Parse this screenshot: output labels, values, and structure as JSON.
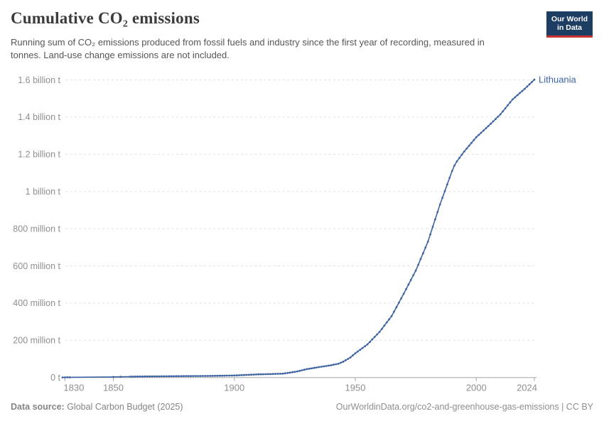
{
  "header": {
    "title": "Cumulative CO₂ emissions",
    "subtitle": "Running sum of CO₂ emissions produced from fossil fuels and industry since the first year of recording, measured in tonnes. Land-use change emissions are not included."
  },
  "logo": {
    "line1": "Our World",
    "line2": "in Data"
  },
  "chart_data": {
    "type": "line",
    "title": "Cumulative CO₂ emissions",
    "entity": "Lithuania",
    "unit": "tonnes",
    "point_values_unit": "million tonnes",
    "x_range": [
      1829,
      2024
    ],
    "y_range_million_tonnes": [
      0,
      1600
    ],
    "grid": true,
    "legend_position": "end-of-line",
    "x_ticks": [
      1830,
      1850,
      1900,
      1950,
      2000,
      2024
    ],
    "y_ticks": [
      {
        "label": "1.6 billion t",
        "value": 1600
      },
      {
        "label": "1.4 billion t",
        "value": 1400
      },
      {
        "label": "1.2 billion t",
        "value": 1200
      },
      {
        "label": "1 billion t",
        "value": 1000
      },
      {
        "label": "800 million t",
        "value": 800
      },
      {
        "label": "600 million t",
        "value": 600
      },
      {
        "label": "400 million t",
        "value": 400
      },
      {
        "label": "200 million t",
        "value": 200
      },
      {
        "label": "0 t",
        "value": 0
      }
    ],
    "series": [
      {
        "name": "Lithuania",
        "color": "#3e63a2",
        "points": [
          [
            1829,
            0.4
          ],
          [
            1830,
            0.7
          ],
          [
            1831,
            1.0
          ],
          [
            1832,
            1.3
          ],
          [
            1850,
            3.2
          ],
          [
            1853,
            4.0
          ],
          [
            1857,
            4.6
          ],
          [
            1860,
            5.2
          ],
          [
            1865,
            5.8
          ],
          [
            1870,
            6.4
          ],
          [
            1875,
            7.0
          ],
          [
            1880,
            7.6
          ],
          [
            1885,
            8.0
          ],
          [
            1890,
            8.6
          ],
          [
            1895,
            9.6
          ],
          [
            1900,
            11
          ],
          [
            1905,
            14
          ],
          [
            1910,
            17
          ],
          [
            1915,
            18.5
          ],
          [
            1920,
            20.5
          ],
          [
            1925,
            30
          ],
          [
            1930,
            45
          ],
          [
            1935,
            56
          ],
          [
            1940,
            66
          ],
          [
            1943,
            74
          ],
          [
            1945,
            85
          ],
          [
            1948,
            108
          ],
          [
            1950,
            130
          ],
          [
            1955,
            178
          ],
          [
            1960,
            245
          ],
          [
            1965,
            330
          ],
          [
            1970,
            450
          ],
          [
            1975,
            575
          ],
          [
            1980,
            730
          ],
          [
            1985,
            930
          ],
          [
            1990,
            1110
          ],
          [
            1991,
            1140
          ],
          [
            1992,
            1162
          ],
          [
            1995,
            1215
          ],
          [
            2000,
            1292
          ],
          [
            2005,
            1352
          ],
          [
            2010,
            1415
          ],
          [
            2015,
            1495
          ],
          [
            2020,
            1552
          ],
          [
            2024,
            1601
          ]
        ],
        "sparse_marker_years": [
          1829,
          1830,
          1831,
          1832,
          1850,
          1853
        ],
        "annual_markers_from": 1857,
        "annual_markers_to": 2024
      }
    ]
  },
  "footer": {
    "source_label": "Data source:",
    "source_value": " Global Carbon Budget (2025)",
    "license": "OurWorldinData.org/co2-and-greenhouse-gas-emissions | CC BY"
  },
  "colors": {
    "line": "#3e63a2",
    "grid": "#e0e0e0",
    "axis": "#a5a5a5",
    "tick_label": "#8f8f8f",
    "entity_label": "#3e63a2"
  }
}
